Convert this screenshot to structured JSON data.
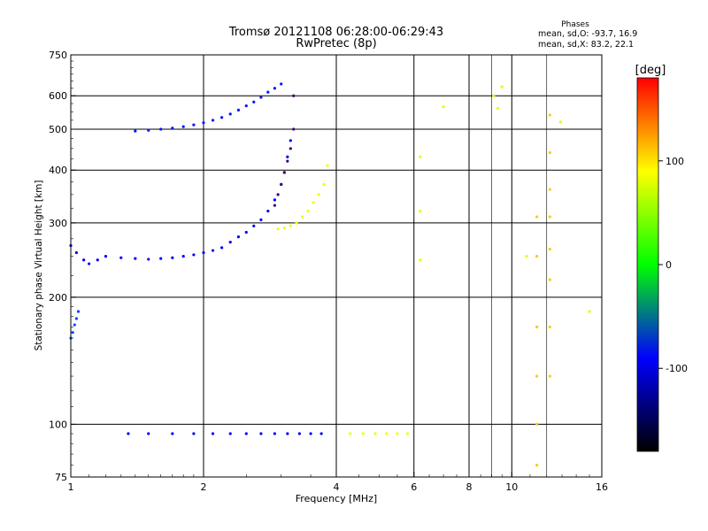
{
  "chart_data": {
    "type": "scatter",
    "title": "Tromsø 20121108 06:28:00-06:29:43",
    "subtitle": "RwPretec (8p)",
    "xlabel": "Frequency [MHz]",
    "ylabel": "Stationary phase Virtual Height [km]",
    "x_scale": "log",
    "y_scale": "log",
    "xlim": [
      1,
      16
    ],
    "ylim": [
      75,
      750
    ],
    "x_ticks": [
      1,
      2,
      4,
      6,
      8,
      10,
      16
    ],
    "x_tick_labels": [
      "1",
      "2",
      "4",
      "6",
      "8",
      "10",
      "16"
    ],
    "y_ticks": [
      75,
      100,
      200,
      300,
      400,
      500,
      600,
      750
    ],
    "y_tick_labels": [
      "75",
      "100",
      "200",
      "300",
      "400",
      "500",
      "600",
      "750"
    ],
    "grid": true,
    "phases_box": {
      "title": "Phases",
      "line1": "mean, sd,O: -93.7, 16.9",
      "line2": "mean, sd,X:  83.2, 22.1"
    },
    "colorbar": {
      "label": "[deg]",
      "range": [
        -180,
        180
      ],
      "tick_values": [
        100,
        0,
        -100
      ],
      "tick_labels": [
        "100",
        "0",
        "-100"
      ]
    },
    "series": [
      {
        "x": [
          1.0,
          1.03,
          1.07,
          1.1,
          1.15,
          1.2,
          1.3,
          1.4,
          1.5,
          1.6,
          1.7,
          1.8,
          1.9,
          2.0,
          2.1,
          2.2,
          2.3,
          2.4,
          2.5,
          2.6,
          2.7,
          2.8,
          2.9,
          3.0,
          3.05,
          3.1,
          3.15
        ],
        "y": [
          265,
          255,
          245,
          240,
          245,
          250,
          248,
          247,
          246,
          247,
          248,
          250,
          252,
          255,
          258,
          262,
          270,
          278,
          285,
          295,
          305,
          320,
          340,
          370,
          395,
          430,
          470
        ],
        "phase": -110
      },
      {
        "x": [
          2.9,
          2.95,
          3.0,
          3.05,
          3.1,
          3.15,
          3.2,
          3.2
        ],
        "y": [
          330,
          350,
          370,
          395,
          420,
          450,
          500,
          600
        ],
        "phase": -150
      },
      {
        "x": [
          2.95,
          3.05,
          3.15,
          3.25,
          3.35,
          3.45,
          3.55,
          3.65,
          3.75,
          3.82
        ],
        "y": [
          290,
          292,
          295,
          300,
          310,
          320,
          335,
          350,
          370,
          410
        ],
        "phase": 90
      },
      {
        "x": [
          1.4,
          1.5,
          1.6,
          1.7,
          1.8,
          1.9,
          2.0,
          2.1,
          2.2,
          2.3,
          2.4,
          2.5,
          2.6,
          2.7,
          2.8,
          2.9,
          3.0
        ],
        "y": [
          495,
          497,
          500,
          503,
          507,
          512,
          518,
          525,
          533,
          543,
          555,
          568,
          580,
          595,
          612,
          625,
          640
        ],
        "phase": -105
      },
      {
        "x": [
          1.0,
          1.01,
          1.02,
          1.03,
          1.04
        ],
        "y": [
          160,
          165,
          172,
          178,
          185
        ],
        "phase": -95
      },
      {
        "x": [
          1.35,
          1.5,
          1.7,
          1.9,
          2.1,
          2.3,
          2.5,
          2.7,
          2.9,
          3.1,
          3.3,
          3.5,
          3.7
        ],
        "y": [
          95,
          95,
          95,
          95,
          95,
          95,
          95,
          95,
          95,
          95,
          95,
          95,
          95
        ],
        "phase": -110
      },
      {
        "x": [
          4.3,
          4.6,
          4.9,
          5.2,
          5.5,
          5.8
        ],
        "y": [
          95,
          95,
          95,
          95,
          95,
          95
        ],
        "phase": 90
      },
      {
        "x": [
          11.4,
          11.4,
          11.4,
          11.4,
          11.4,
          11.4,
          12.2,
          12.2,
          12.2,
          12.2,
          12.2,
          12.2,
          12.2,
          12.2
        ],
        "y": [
          80,
          100,
          130,
          170,
          250,
          310,
          130,
          170,
          220,
          260,
          310,
          360,
          440,
          540
        ],
        "phase": 120
      },
      {
        "x": [
          6.2,
          6.2,
          6.2,
          7.0,
          9.1,
          9.3,
          9.5,
          10.8,
          12.9,
          15.0
        ],
        "y": [
          245,
          320,
          430,
          565,
          600,
          560,
          630,
          250,
          520,
          185
        ],
        "phase": 80
      }
    ]
  }
}
